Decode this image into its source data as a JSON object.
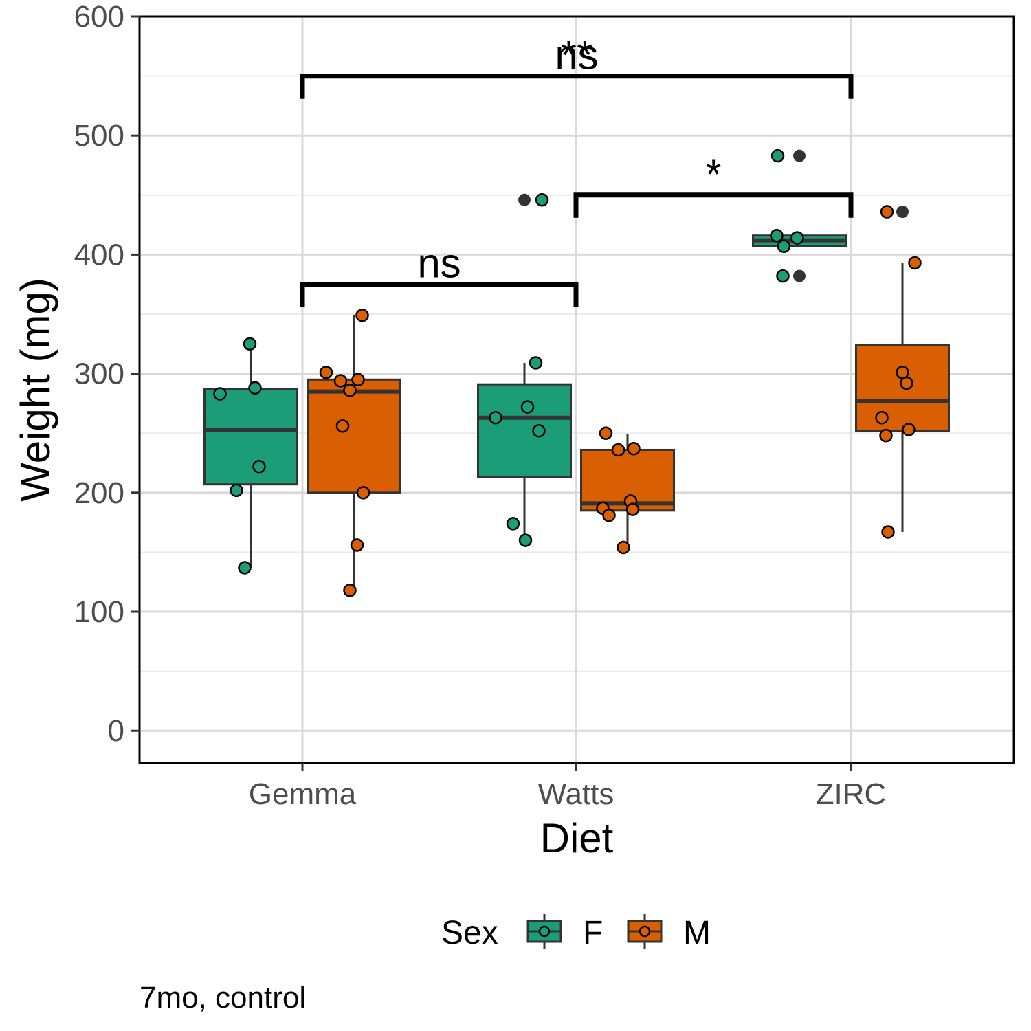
{
  "chart_data": {
    "type": "box",
    "xlabel": "Diet",
    "ylabel": "Weight (mg)",
    "caption": "7mo, control",
    "ylim": [
      -27,
      600
    ],
    "yticks": [
      0,
      100,
      200,
      300,
      400,
      500,
      600
    ],
    "categories": [
      "Gemma",
      "Watts",
      "ZIRC"
    ],
    "grid": true,
    "legend": {
      "title": "Sex",
      "position": "bottom",
      "entries": [
        {
          "name": "F",
          "color": "#1b9e77"
        },
        {
          "name": "M",
          "color": "#d95f02"
        }
      ]
    },
    "series": [
      {
        "name": "F",
        "color": "#1b9e77",
        "boxes": [
          {
            "category": "Gemma",
            "q1": 207,
            "median": 253,
            "q3": 287,
            "whisker_low": 137,
            "whisker_high": 325,
            "outliers": [],
            "points": [
              [
                -0.3,
                283
              ],
              [
                -0.01,
                325
              ],
              [
                0.04,
                288
              ],
              [
                -0.06,
                137
              ],
              [
                0.08,
                222
              ],
              [
                -0.14,
                202
              ]
            ]
          },
          {
            "category": "Watts",
            "q1": 213,
            "median": 263,
            "q3": 291,
            "whisker_low": 160,
            "whisker_high": 309,
            "outliers": [
              446
            ],
            "points": [
              [
                -0.28,
                263
              ],
              [
                0.11,
                309
              ],
              [
                0.03,
                272
              ],
              [
                0.14,
                252
              ],
              [
                -0.11,
                174
              ],
              [
                0.01,
                160
              ],
              [
                0.17,
                446
              ]
            ]
          },
          {
            "category": "ZIRC",
            "q1": 407,
            "median": 412,
            "q3": 416,
            "whisker_low": 407,
            "whisker_high": 416,
            "outliers": [
              483,
              382
            ],
            "points": [
              [
                -0.22,
                416
              ],
              [
                -0.15,
                407
              ],
              [
                -0.02,
                414
              ],
              [
                -0.16,
                382
              ],
              [
                -0.21,
                483
              ]
            ]
          }
        ]
      },
      {
        "name": "M",
        "color": "#d95f02",
        "boxes": [
          {
            "category": "Gemma",
            "q1": 200,
            "median": 285,
            "q3": 295,
            "whisker_low": 118,
            "whisker_high": 349,
            "outliers": [],
            "points": [
              [
                -0.27,
                301
              ],
              [
                -0.13,
                294
              ],
              [
                -0.11,
                256
              ],
              [
                -0.04,
                286
              ],
              [
                0.04,
                295
              ],
              [
                0.08,
                349
              ],
              [
                0.09,
                200
              ],
              [
                0.03,
                156
              ],
              [
                -0.04,
                118
              ]
            ]
          },
          {
            "category": "Watts",
            "q1": 185,
            "median": 191,
            "q3": 236,
            "whisker_low": 154,
            "whisker_high": 249,
            "outliers": [],
            "points": [
              [
                -0.21,
                250
              ],
              [
                -0.09,
                236
              ],
              [
                0.06,
                237
              ],
              [
                -0.24,
                187
              ],
              [
                -0.18,
                181
              ],
              [
                0.03,
                193
              ],
              [
                0.05,
                186
              ],
              [
                -0.04,
                154
              ]
            ]
          },
          {
            "category": "ZIRC",
            "q1": 252,
            "median": 277,
            "q3": 324,
            "whisker_low": 167,
            "whisker_high": 393,
            "outliers": [
              436
            ],
            "points": [
              [
                -0.2,
                263
              ],
              [
                -0.16,
                248
              ],
              [
                0.0,
                301
              ],
              [
                0.04,
                292
              ],
              [
                0.06,
                253
              ],
              [
                0.12,
                393
              ],
              [
                -0.14,
                167
              ],
              [
                -0.15,
                436
              ]
            ]
          }
        ]
      }
    ],
    "comparisons": [
      {
        "from": "Gemma",
        "to": "Watts",
        "y": 375,
        "label": "ns"
      },
      {
        "from": "Watts",
        "to": "ZIRC",
        "y": 450,
        "label": "*"
      },
      {
        "from": "Gemma",
        "to": "ZIRC",
        "y": 550,
        "label": "ns"
      },
      {
        "from": "Gemma",
        "to": "ZIRC",
        "y": 550,
        "label": "**"
      }
    ]
  }
}
